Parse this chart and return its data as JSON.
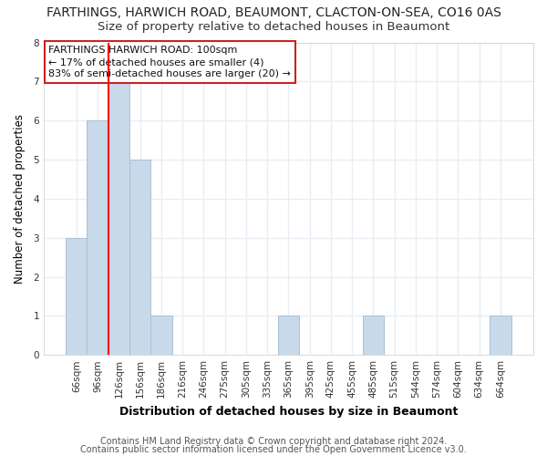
{
  "title": "FARTHINGS, HARWICH ROAD, BEAUMONT, CLACTON-ON-SEA, CO16 0AS",
  "subtitle": "Size of property relative to detached houses in Beaumont",
  "xlabel": "Distribution of detached houses by size in Beaumont",
  "ylabel": "Number of detached properties",
  "categories": [
    "66sqm",
    "96sqm",
    "126sqm",
    "156sqm",
    "186sqm",
    "216sqm",
    "246sqm",
    "275sqm",
    "305sqm",
    "335sqm",
    "365sqm",
    "395sqm",
    "425sqm",
    "455sqm",
    "485sqm",
    "515sqm",
    "544sqm",
    "574sqm",
    "604sqm",
    "634sqm",
    "664sqm"
  ],
  "values": [
    3,
    6,
    7,
    5,
    1,
    0,
    0,
    0,
    0,
    0,
    1,
    0,
    0,
    0,
    1,
    0,
    0,
    0,
    0,
    0,
    1
  ],
  "bar_color": "#c8daea",
  "bar_edge_color": "#a8c0d6",
  "red_line_x": 1.5,
  "ylim": [
    0,
    8
  ],
  "yticks": [
    0,
    1,
    2,
    3,
    4,
    5,
    6,
    7,
    8
  ],
  "annotation_line1": "FARTHINGS HARWICH ROAD: 100sqm",
  "annotation_line2": "← 17% of detached houses are smaller (4)",
  "annotation_line3": "83% of semi-detached houses are larger (20) →",
  "footer1": "Contains HM Land Registry data © Crown copyright and database right 2024.",
  "footer2": "Contains public sector information licensed under the Open Government Licence v3.0.",
  "bg_color": "#ffffff",
  "plot_bg_color": "#ffffff",
  "grid_color": "#e8eef4",
  "title_fontsize": 10,
  "subtitle_fontsize": 9.5,
  "xlabel_fontsize": 9,
  "ylabel_fontsize": 8.5,
  "tick_fontsize": 7.5,
  "annotation_fontsize": 8,
  "footer_fontsize": 7
}
